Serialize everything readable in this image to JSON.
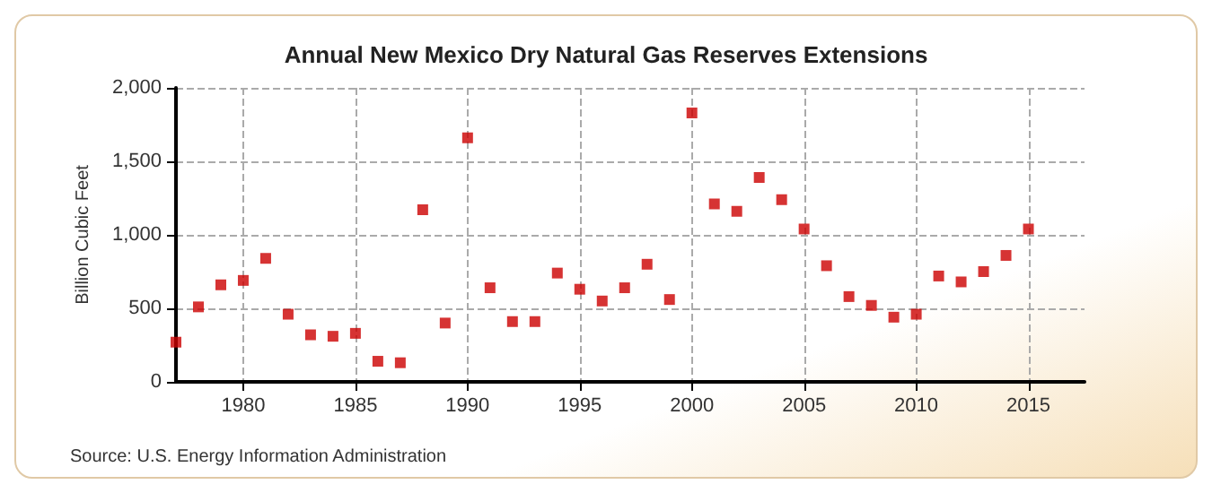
{
  "chart_data": {
    "type": "scatter",
    "title": "Annual New Mexico Dry Natural Gas Reserves Extensions",
    "ylabel": "Billion Cubic Feet",
    "x": [
      1977,
      1978,
      1979,
      1980,
      1981,
      1982,
      1983,
      1984,
      1985,
      1986,
      1987,
      1988,
      1989,
      1990,
      1991,
      1992,
      1993,
      1994,
      1995,
      1996,
      1997,
      1998,
      1999,
      2000,
      2001,
      2002,
      2003,
      2004,
      2005,
      2006,
      2007,
      2008,
      2009,
      2010,
      2011,
      2012,
      2013,
      2014,
      2015
    ],
    "series": [
      {
        "color": "#cc0000",
        "values": [
          270,
          510,
          660,
          690,
          840,
          460,
          320,
          310,
          330,
          140,
          130,
          1170,
          400,
          1660,
          640,
          410,
          410,
          740,
          630,
          550,
          640,
          800,
          560,
          1830,
          1210,
          1160,
          1390,
          1240,
          1040,
          790,
          580,
          520,
          440,
          460,
          720,
          680,
          750,
          860,
          1040
        ]
      }
    ],
    "xlim": [
      1977,
      2017.5
    ],
    "xticks": [
      1980,
      1985,
      1990,
      1995,
      2000,
      2005,
      2010,
      2015
    ],
    "ylim": [
      0,
      2000
    ],
    "yticks": [
      0,
      500,
      {
        "value": 1000,
        "label": "1,000"
      },
      {
        "value": 1500,
        "label": "1,500"
      },
      {
        "value": 2000,
        "label": "2,000"
      }
    ],
    "grid": true,
    "marker": "square",
    "annotations": [
      "Source: U.S. Energy Information Administration"
    ]
  }
}
